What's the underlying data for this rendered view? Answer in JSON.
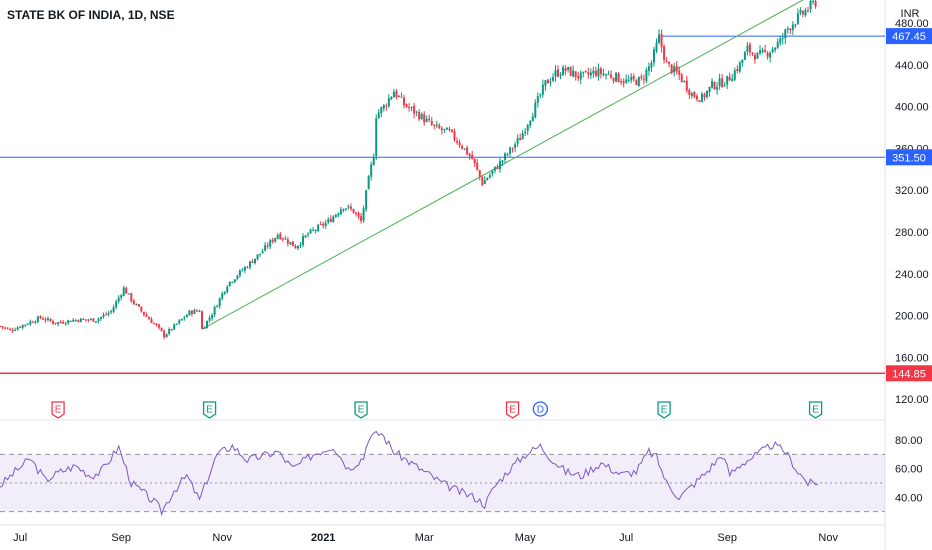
{
  "chart_data": {
    "type": "candlestick",
    "symbol": "STATE BK OF INDIA, 1D, NSE",
    "currency": "INR",
    "x_ticks": [
      "Jul",
      "Sep",
      "Nov",
      "2021",
      "Mar",
      "May",
      "Jul",
      "Sep",
      "Nov"
    ],
    "y_ticks": [
      120,
      160,
      200,
      240,
      280,
      320,
      360,
      400,
      440,
      480
    ],
    "ylim": [
      103,
      502
    ],
    "price_lines": [
      {
        "value": 351.5,
        "label": "351.50",
        "color": "#2962ff"
      },
      {
        "value": 144.85,
        "label": "144.85",
        "color": "#f23645"
      },
      {
        "value": 467.45,
        "label": "467.45",
        "color": "#2962ff"
      }
    ],
    "trendline": {
      "from": {
        "month": 4.0,
        "price": 187
      },
      "to": {
        "month": 16.2,
        "price": 510
      },
      "color": "#4caf50"
    },
    "price_path": [
      [
        0.0,
        190
      ],
      [
        0.2,
        186
      ],
      [
        0.5,
        192
      ],
      [
        0.8,
        198
      ],
      [
        1.1,
        193
      ],
      [
        1.5,
        196
      ],
      [
        1.9,
        196
      ],
      [
        2.2,
        204
      ],
      [
        2.45,
        226
      ],
      [
        2.65,
        212
      ],
      [
        2.9,
        199
      ],
      [
        3.1,
        190
      ],
      [
        3.25,
        181
      ],
      [
        3.5,
        192
      ],
      [
        3.75,
        203
      ],
      [
        3.95,
        205
      ],
      [
        4.0,
        187
      ],
      [
        4.2,
        202
      ],
      [
        4.5,
        230
      ],
      [
        4.9,
        248
      ],
      [
        5.2,
        262
      ],
      [
        5.5,
        278
      ],
      [
        5.85,
        266
      ],
      [
        6.1,
        278
      ],
      [
        6.5,
        290
      ],
      [
        6.8,
        305
      ],
      [
        7.0,
        300
      ],
      [
        7.15,
        290
      ],
      [
        7.3,
        330
      ],
      [
        7.4,
        355
      ],
      [
        7.45,
        392
      ],
      [
        7.6,
        400
      ],
      [
        7.8,
        415
      ],
      [
        8.0,
        402
      ],
      [
        8.3,
        392
      ],
      [
        8.6,
        380
      ],
      [
        8.9,
        375
      ],
      [
        9.1,
        365
      ],
      [
        9.35,
        350
      ],
      [
        9.55,
        327
      ],
      [
        9.8,
        340
      ],
      [
        10.0,
        352
      ],
      [
        10.3,
        370
      ],
      [
        10.55,
        395
      ],
      [
        10.8,
        422
      ],
      [
        11.0,
        432
      ],
      [
        11.2,
        435
      ],
      [
        11.5,
        428
      ],
      [
        11.8,
        433
      ],
      [
        12.1,
        430
      ],
      [
        12.4,
        424
      ],
      [
        12.7,
        425
      ],
      [
        12.9,
        442
      ],
      [
        13.05,
        466
      ],
      [
        13.2,
        440
      ],
      [
        13.45,
        430
      ],
      [
        13.7,
        412
      ],
      [
        13.9,
        408
      ],
      [
        14.1,
        420
      ],
      [
        14.4,
        425
      ],
      [
        14.65,
        440
      ],
      [
        14.8,
        455
      ],
      [
        15.0,
        448
      ],
      [
        15.2,
        452
      ],
      [
        15.45,
        462
      ],
      [
        15.6,
        475
      ],
      [
        15.8,
        485
      ],
      [
        16.1,
        498
      ],
      [
        16.2,
        502
      ]
    ],
    "earnings_markers": [
      {
        "month": 1.15,
        "label": "E",
        "color": "#f23645"
      },
      {
        "month": 4.15,
        "label": "E",
        "color": "#089981"
      },
      {
        "month": 7.15,
        "label": "E",
        "color": "#089981"
      },
      {
        "month": 10.15,
        "label": "E",
        "color": "#f23645"
      },
      {
        "month": 10.7,
        "label": "D",
        "color": "#2962ff"
      },
      {
        "month": 13.15,
        "label": "E",
        "color": "#089981"
      },
      {
        "month": 16.15,
        "label": "E",
        "color": "#089981"
      }
    ],
    "rsi": {
      "y_ticks": [
        40,
        60,
        80
      ],
      "band": [
        30,
        70
      ],
      "midline": 50,
      "ylim": [
        22,
        92
      ],
      "color": "#7e57c2",
      "points": [
        [
          0.0,
          48
        ],
        [
          0.3,
          58
        ],
        [
          0.6,
          67
        ],
        [
          0.9,
          52
        ],
        [
          1.2,
          58
        ],
        [
          1.5,
          62
        ],
        [
          1.8,
          55
        ],
        [
          2.0,
          58
        ],
        [
          2.35,
          75
        ],
        [
          2.6,
          50
        ],
        [
          2.85,
          43
        ],
        [
          3.1,
          35
        ],
        [
          3.2,
          30
        ],
        [
          3.45,
          45
        ],
        [
          3.7,
          55
        ],
        [
          3.95,
          38
        ],
        [
          4.1,
          52
        ],
        [
          4.3,
          70
        ],
        [
          4.6,
          76
        ],
        [
          4.9,
          66
        ],
        [
          5.2,
          69
        ],
        [
          5.5,
          72
        ],
        [
          5.8,
          60
        ],
        [
          6.2,
          70
        ],
        [
          6.6,
          76
        ],
        [
          6.9,
          60
        ],
        [
          7.2,
          68
        ],
        [
          7.3,
          82
        ],
        [
          7.55,
          85
        ],
        [
          7.8,
          72
        ],
        [
          8.1,
          65
        ],
        [
          8.4,
          58
        ],
        [
          8.75,
          50
        ],
        [
          9.1,
          44
        ],
        [
          9.4,
          40
        ],
        [
          9.6,
          35
        ],
        [
          9.8,
          48
        ],
        [
          10.1,
          60
        ],
        [
          10.4,
          70
        ],
        [
          10.7,
          76
        ],
        [
          10.95,
          66
        ],
        [
          11.2,
          58
        ],
        [
          11.5,
          55
        ],
        [
          11.9,
          64
        ],
        [
          12.3,
          56
        ],
        [
          12.6,
          58
        ],
        [
          12.85,
          72
        ],
        [
          13.0,
          68
        ],
        [
          13.2,
          50
        ],
        [
          13.45,
          40
        ],
        [
          13.7,
          48
        ],
        [
          14.0,
          58
        ],
        [
          14.3,
          70
        ],
        [
          14.45,
          56
        ],
        [
          14.7,
          64
        ],
        [
          15.0,
          70
        ],
        [
          15.3,
          77
        ],
        [
          15.55,
          72
        ],
        [
          15.8,
          58
        ],
        [
          16.0,
          50
        ],
        [
          16.2,
          49
        ]
      ]
    }
  }
}
